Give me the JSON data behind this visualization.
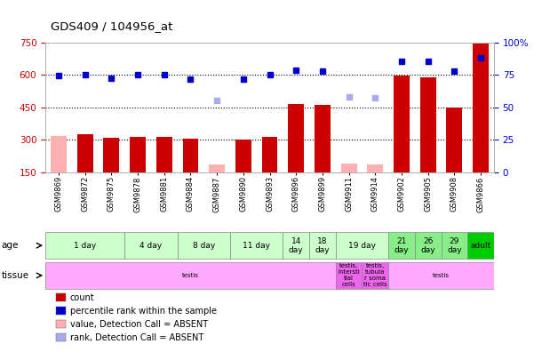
{
  "title": "GDS409 / 104956_at",
  "samples": [
    "GSM9869",
    "GSM9872",
    "GSM9875",
    "GSM9878",
    "GSM9881",
    "GSM9884",
    "GSM9887",
    "GSM9890",
    "GSM9893",
    "GSM9896",
    "GSM9899",
    "GSM9911",
    "GSM9914",
    "GSM9902",
    "GSM9905",
    "GSM9908",
    "GSM9866"
  ],
  "bar_values": [
    null,
    325,
    310,
    315,
    315,
    305,
    null,
    300,
    315,
    465,
    460,
    null,
    null,
    595,
    590,
    450,
    745
  ],
  "bar_absent_values": [
    320,
    null,
    null,
    null,
    null,
    null,
    185,
    null,
    null,
    null,
    null,
    190,
    185,
    null,
    null,
    null,
    null
  ],
  "bar_color": "#cc0000",
  "bar_absent_color": "#ffb0b0",
  "dot_values": [
    595,
    600,
    585,
    600,
    600,
    580,
    null,
    580,
    600,
    620,
    615,
    null,
    null,
    660,
    660,
    615,
    680
  ],
  "dot_absent_values": [
    null,
    null,
    null,
    null,
    null,
    null,
    480,
    null,
    null,
    null,
    null,
    500,
    495,
    null,
    null,
    null,
    null
  ],
  "dot_color": "#0000cc",
  "dot_absent_color": "#aaaaee",
  "ylim_left": [
    150,
    750
  ],
  "ylim_right": [
    0,
    100
  ],
  "yticks_left": [
    150,
    300,
    450,
    600,
    750
  ],
  "yticks_right": [
    0,
    25,
    50,
    75,
    100
  ],
  "age_groups": [
    {
      "label": "1 day",
      "start": 0,
      "end": 3,
      "color": "#ccffcc"
    },
    {
      "label": "4 day",
      "start": 3,
      "end": 5,
      "color": "#ccffcc"
    },
    {
      "label": "8 day",
      "start": 5,
      "end": 7,
      "color": "#ccffcc"
    },
    {
      "label": "11 day",
      "start": 7,
      "end": 9,
      "color": "#ccffcc"
    },
    {
      "label": "14\nday",
      "start": 9,
      "end": 10,
      "color": "#ccffcc"
    },
    {
      "label": "18\nday",
      "start": 10,
      "end": 11,
      "color": "#ccffcc"
    },
    {
      "label": "19 day",
      "start": 11,
      "end": 13,
      "color": "#ccffcc"
    },
    {
      "label": "21\nday",
      "start": 13,
      "end": 14,
      "color": "#88ee88"
    },
    {
      "label": "26\nday",
      "start": 14,
      "end": 15,
      "color": "#88ee88"
    },
    {
      "label": "29\nday",
      "start": 15,
      "end": 16,
      "color": "#88ee88"
    },
    {
      "label": "adult",
      "start": 16,
      "end": 17,
      "color": "#00cc00"
    }
  ],
  "tissue_groups": [
    {
      "label": "testis",
      "start": 0,
      "end": 11,
      "color": "#ffaaff"
    },
    {
      "label": "testis,\nintersti\ntial\ncells",
      "start": 11,
      "end": 12,
      "color": "#ee66ee"
    },
    {
      "label": "testis,\ntubula\nr soma\ntic cells",
      "start": 12,
      "end": 13,
      "color": "#ee66ee"
    },
    {
      "label": "testis",
      "start": 13,
      "end": 17,
      "color": "#ffaaff"
    }
  ],
  "legend": [
    {
      "label": "count",
      "color": "#cc0000"
    },
    {
      "label": "percentile rank within the sample",
      "color": "#0000cc"
    },
    {
      "label": "value, Detection Call = ABSENT",
      "color": "#ffb0b0"
    },
    {
      "label": "rank, Detection Call = ABSENT",
      "color": "#aaaaee"
    }
  ],
  "background_color": "#ffffff",
  "plot_bg_color": "#ffffff",
  "axis_label_color_left": "#cc0000",
  "axis_label_color_right": "#0000cc"
}
